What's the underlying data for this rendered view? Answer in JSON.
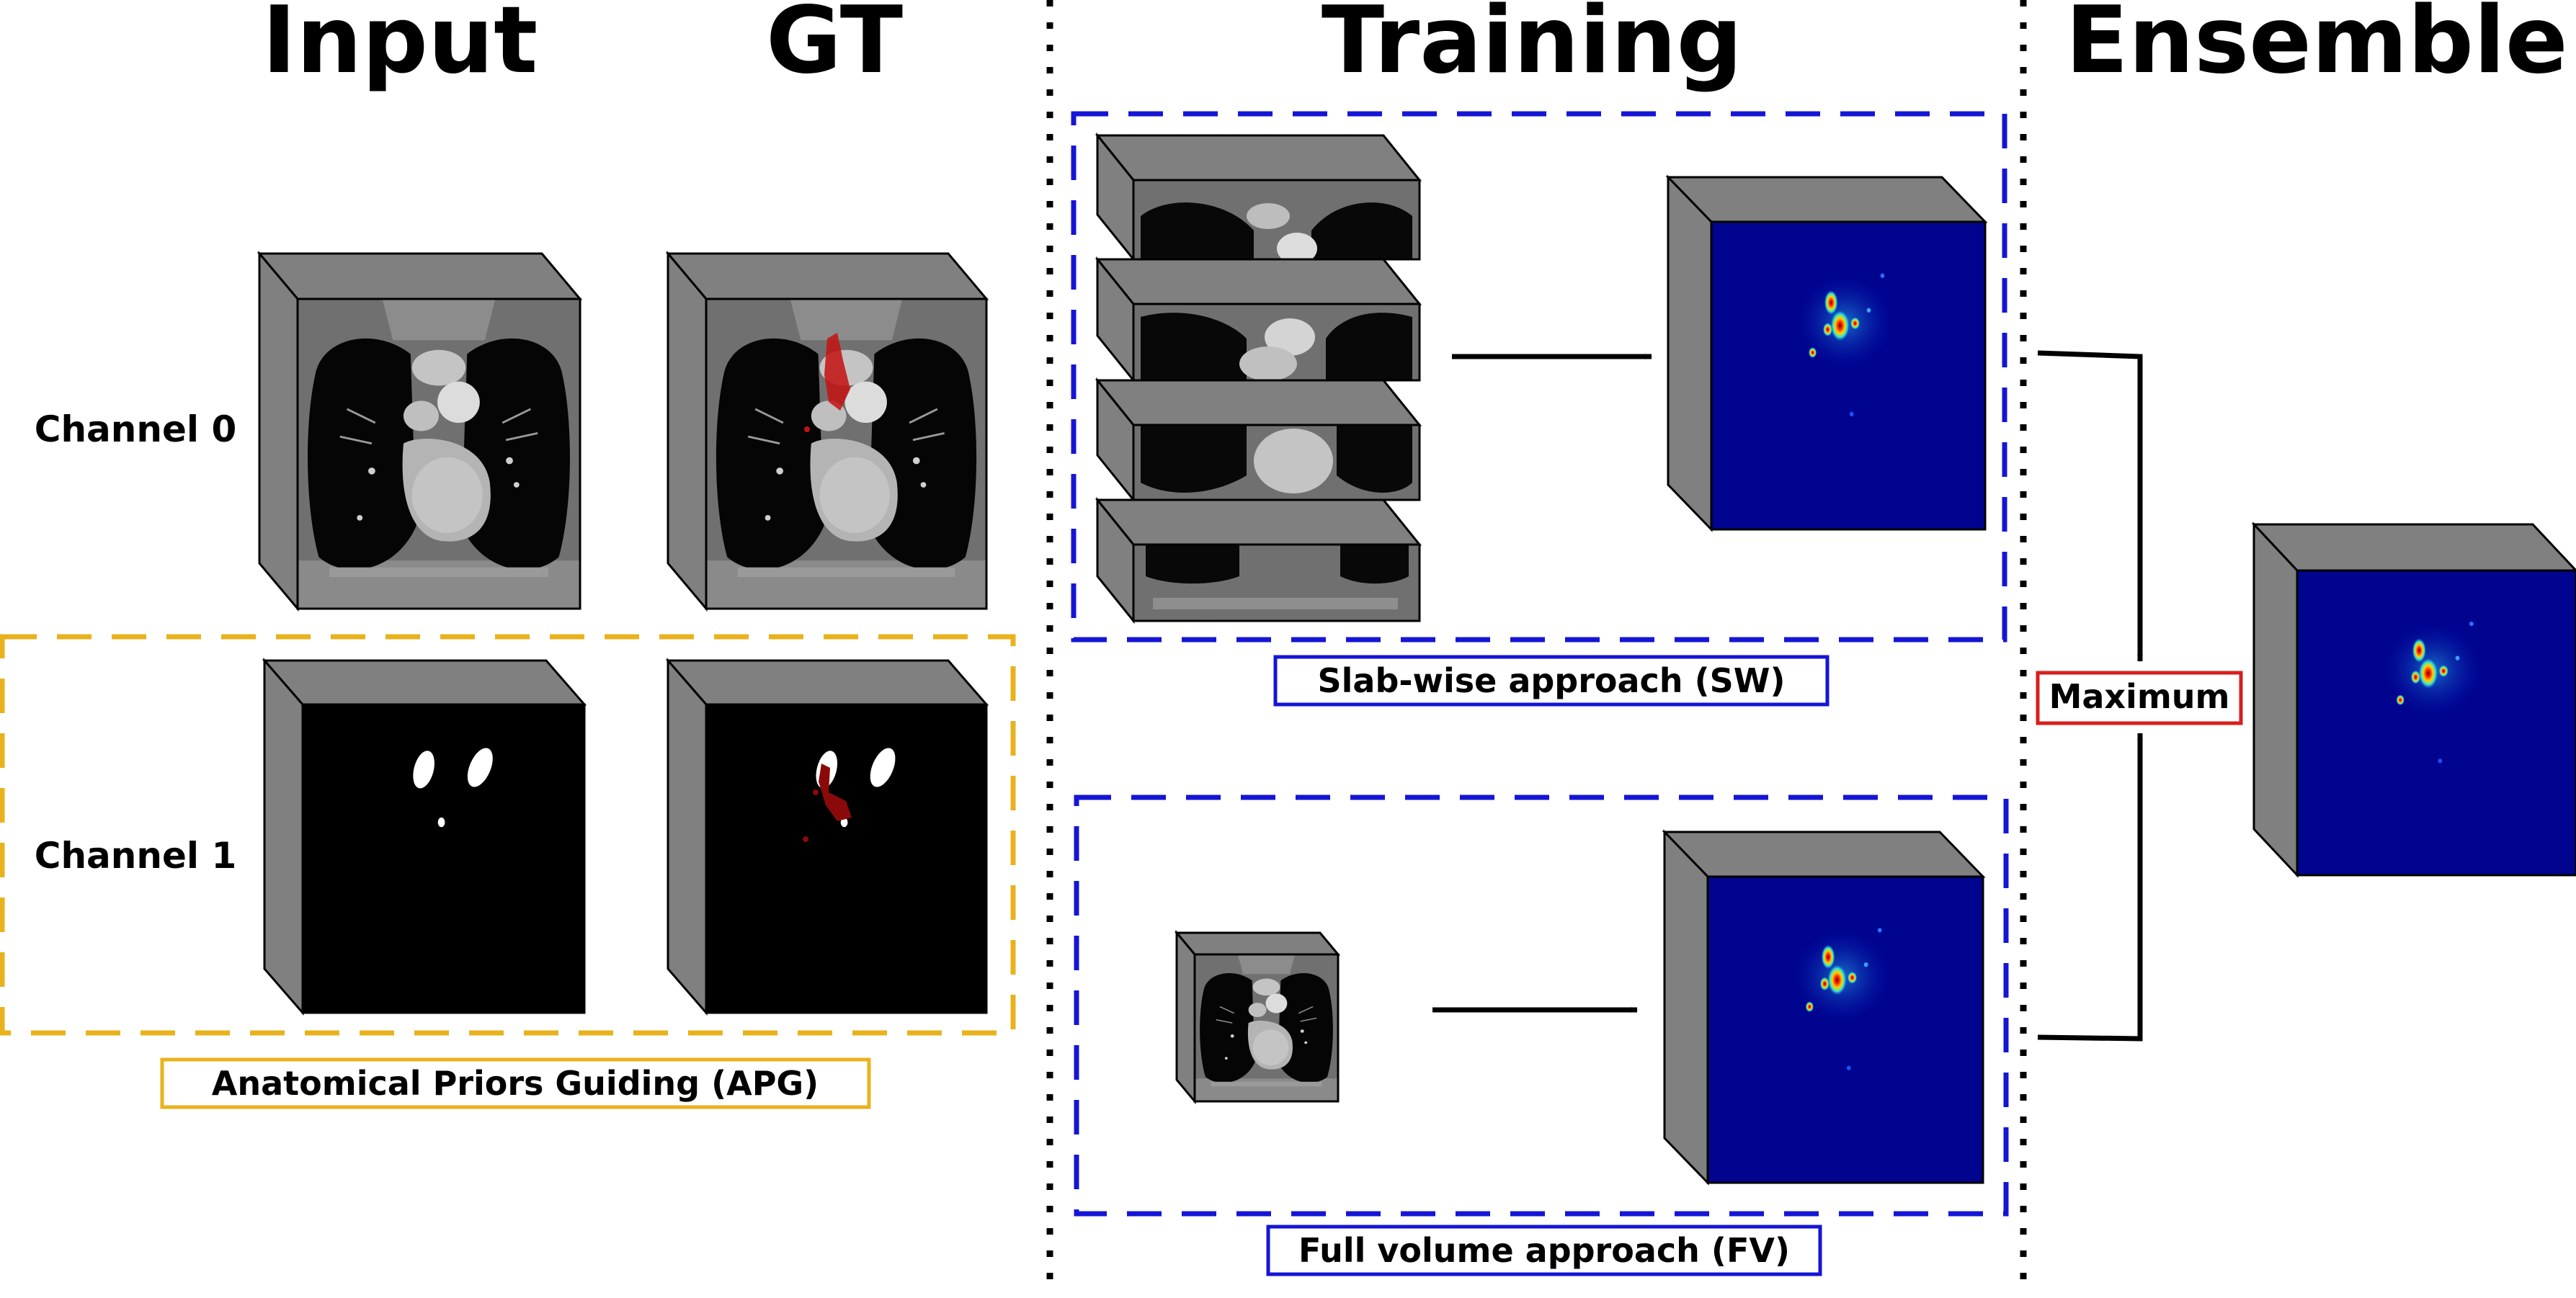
{
  "headers": {
    "input": "Input",
    "gt": "GT",
    "training": "Training",
    "ensemble": "Ensemble"
  },
  "rows": {
    "channel0": "Channel 0",
    "channel1": "Channel 1"
  },
  "labels": {
    "apg": "Anatomical Priors Guiding (APG)",
    "sw": "Slab-wise approach (SW)",
    "fv": "Full volume approach (FV)",
    "maximum": "Maximum"
  },
  "colors": {
    "apg_frame": "#E8B21C",
    "approach_frame": "#1515D6",
    "maximum_frame": "#D81E1E",
    "heatmap_background": "#00048E",
    "cube_side": "#808080"
  }
}
